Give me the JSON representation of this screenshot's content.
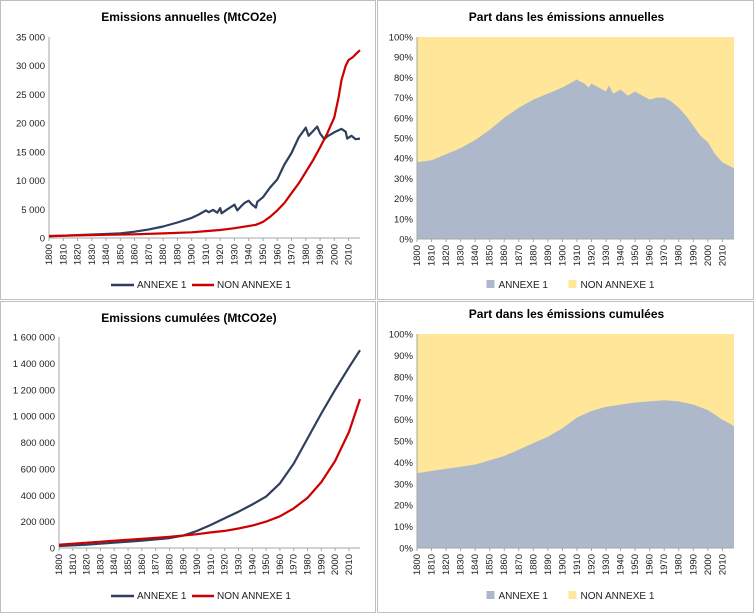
{
  "chart_data": [
    {
      "type": "line",
      "title": "Emissions annuelles (MtCO2e)",
      "ylim": [
        0,
        35000
      ],
      "y_ticks": [
        "35 000",
        "30 000",
        "25 000",
        "20 000",
        "15 000",
        "10 000",
        "5 000",
        "0"
      ],
      "x_range": [
        1800,
        2018
      ],
      "x_ticks": [
        "1800",
        "1810",
        "1820",
        "1830",
        "1840",
        "1850",
        "1860",
        "1870",
        "1880",
        "1890",
        "1900",
        "1910",
        "1920",
        "1930",
        "1940",
        "1950",
        "1960",
        "1970",
        "1980",
        "1990",
        "2000",
        "2010"
      ],
      "grid": false,
      "legend": "bottom",
      "series": [
        {
          "name": "ANNEXE 1",
          "color": "#2e3f5e",
          "x": [
            1800,
            1820,
            1840,
            1850,
            1860,
            1870,
            1880,
            1890,
            1900,
            1905,
            1910,
            1912,
            1915,
            1918,
            1920,
            1921,
            1925,
            1930,
            1932,
            1935,
            1937,
            1940,
            1942,
            1945,
            1946,
            1950,
            1955,
            1960,
            1965,
            1970,
            1975,
            1980,
            1982,
            1985,
            1988,
            1990,
            1993,
            1995,
            2000,
            2005,
            2008,
            2009,
            2012,
            2015,
            2018
          ],
          "values": [
            300,
            500,
            700,
            800,
            1100,
            1500,
            2000,
            2700,
            3500,
            4100,
            4800,
            4500,
            4900,
            4400,
            5200,
            4300,
            5000,
            5800,
            4800,
            5600,
            6100,
            6500,
            5900,
            5300,
            6300,
            7100,
            8800,
            10200,
            12800,
            14800,
            17500,
            19200,
            17800,
            18600,
            19400,
            18200,
            17200,
            17700,
            18400,
            19000,
            18500,
            17300,
            17800,
            17200,
            17300
          ]
        },
        {
          "name": "NON ANNEXE 1",
          "color": "#cc0000",
          "x": [
            1800,
            1820,
            1840,
            1860,
            1880,
            1900,
            1910,
            1920,
            1930,
            1940,
            1945,
            1950,
            1955,
            1960,
            1965,
            1970,
            1975,
            1980,
            1985,
            1990,
            1995,
            2000,
            2003,
            2005,
            2008,
            2010,
            2013,
            2015,
            2018
          ],
          "values": [
            350,
            450,
            550,
            650,
            800,
            1000,
            1200,
            1400,
            1700,
            2100,
            2300,
            2800,
            3700,
            4800,
            6100,
            7800,
            9500,
            11500,
            13500,
            15800,
            18200,
            21000,
            24500,
            27500,
            30000,
            31000,
            31500,
            32000,
            32700
          ]
        }
      ]
    },
    {
      "type": "area",
      "title": "Part dans les émissions annuelles",
      "ylim": [
        0,
        1
      ],
      "y_ticks": [
        "100%",
        "90%",
        "80%",
        "70%",
        "60%",
        "50%",
        "40%",
        "30%",
        "20%",
        "10%",
        "0%"
      ],
      "x_range": [
        1800,
        2018
      ],
      "x_ticks": [
        "1800",
        "1810",
        "1820",
        "1830",
        "1840",
        "1850",
        "1860",
        "1870",
        "1880",
        "1890",
        "1900",
        "1910",
        "1920",
        "1930",
        "1940",
        "1950",
        "1960",
        "1970",
        "1980",
        "1990",
        "2000",
        "2010"
      ],
      "legend": "bottom",
      "background_color": "#ffe699",
      "series": [
        {
          "name": "ANNEXE 1",
          "color": "#adb9ca",
          "x": [
            1800,
            1810,
            1820,
            1830,
            1840,
            1850,
            1860,
            1870,
            1880,
            1890,
            1900,
            1905,
            1910,
            1912,
            1915,
            1918,
            1920,
            1925,
            1930,
            1932,
            1935,
            1940,
            1945,
            1950,
            1955,
            1960,
            1965,
            1970,
            1975,
            1980,
            1985,
            1990,
            1995,
            2000,
            2005,
            2010,
            2018
          ],
          "values": [
            0.38,
            0.39,
            0.42,
            0.45,
            0.49,
            0.54,
            0.6,
            0.65,
            0.69,
            0.72,
            0.75,
            0.77,
            0.79,
            0.78,
            0.77,
            0.75,
            0.77,
            0.75,
            0.73,
            0.76,
            0.72,
            0.74,
            0.71,
            0.73,
            0.71,
            0.69,
            0.7,
            0.7,
            0.68,
            0.65,
            0.61,
            0.56,
            0.51,
            0.48,
            0.42,
            0.38,
            0.35
          ]
        },
        {
          "name": "NON ANNEXE 1",
          "color": "#ffe699",
          "values": []
        }
      ]
    },
    {
      "type": "line",
      "title": "Emissions cumulées (MtCO2e)",
      "ylim": [
        0,
        1600000
      ],
      "y_ticks": [
        "1 600 000",
        "1 400 000",
        "1 200 000",
        "1 000 000",
        "800 000",
        "600 000",
        "400 000",
        "200 000",
        "0"
      ],
      "x_range": [
        1800,
        2018
      ],
      "x_ticks": [
        "1800",
        "1810",
        "1820",
        "1830",
        "1840",
        "1850",
        "1860",
        "1870",
        "1880",
        "1890",
        "1900",
        "1910",
        "1920",
        "1930",
        "1940",
        "1950",
        "1960",
        "1970",
        "1980",
        "1990",
        "2000",
        "2010"
      ],
      "grid": false,
      "legend": "bottom",
      "series": [
        {
          "name": "ANNEXE 1",
          "color": "#2e3f5e",
          "x": [
            1800,
            1820,
            1840,
            1860,
            1880,
            1890,
            1900,
            1910,
            1920,
            1930,
            1940,
            1950,
            1960,
            1970,
            1980,
            1990,
            2000,
            2010,
            2018
          ],
          "values": [
            15000,
            25000,
            40000,
            55000,
            75000,
            95000,
            130000,
            175000,
            225000,
            275000,
            330000,
            390000,
            490000,
            640000,
            830000,
            1020000,
            1200000,
            1370000,
            1500000
          ]
        },
        {
          "name": "NON ANNEXE 1",
          "color": "#cc0000",
          "x": [
            1800,
            1820,
            1840,
            1860,
            1880,
            1890,
            1900,
            1910,
            1920,
            1930,
            1940,
            1950,
            1960,
            1970,
            1980,
            1990,
            2000,
            2010,
            2018
          ],
          "values": [
            25000,
            40000,
            55000,
            70000,
            85000,
            95000,
            105000,
            118000,
            130000,
            148000,
            170000,
            200000,
            240000,
            300000,
            380000,
            500000,
            660000,
            880000,
            1130000
          ]
        }
      ]
    },
    {
      "type": "area",
      "title": "Part dans les émissions cumulées",
      "ylim": [
        0,
        1
      ],
      "y_ticks": [
        "100%",
        "90%",
        "80%",
        "70%",
        "60%",
        "50%",
        "40%",
        "30%",
        "20%",
        "10%",
        "0%"
      ],
      "x_range": [
        1800,
        2018
      ],
      "x_ticks": [
        "1800",
        "1810",
        "1820",
        "1830",
        "1840",
        "1850",
        "1860",
        "1870",
        "1880",
        "1890",
        "1900",
        "1910",
        "1920",
        "1930",
        "1940",
        "1950",
        "1960",
        "1970",
        "1980",
        "1990",
        "2000",
        "2010"
      ],
      "legend": "bottom",
      "background_color": "#ffe699",
      "series": [
        {
          "name": "ANNEXE 1",
          "color": "#adb9ca",
          "x": [
            1800,
            1810,
            1820,
            1830,
            1840,
            1850,
            1860,
            1870,
            1880,
            1890,
            1900,
            1910,
            1920,
            1930,
            1940,
            1950,
            1960,
            1970,
            1980,
            1990,
            2000,
            2010,
            2018
          ],
          "values": [
            0.35,
            0.36,
            0.37,
            0.38,
            0.39,
            0.41,
            0.43,
            0.46,
            0.49,
            0.52,
            0.56,
            0.61,
            0.64,
            0.66,
            0.67,
            0.68,
            0.685,
            0.69,
            0.685,
            0.67,
            0.645,
            0.6,
            0.57
          ]
        },
        {
          "name": "NON ANNEXE 1",
          "color": "#ffe699",
          "values": []
        }
      ]
    }
  ]
}
